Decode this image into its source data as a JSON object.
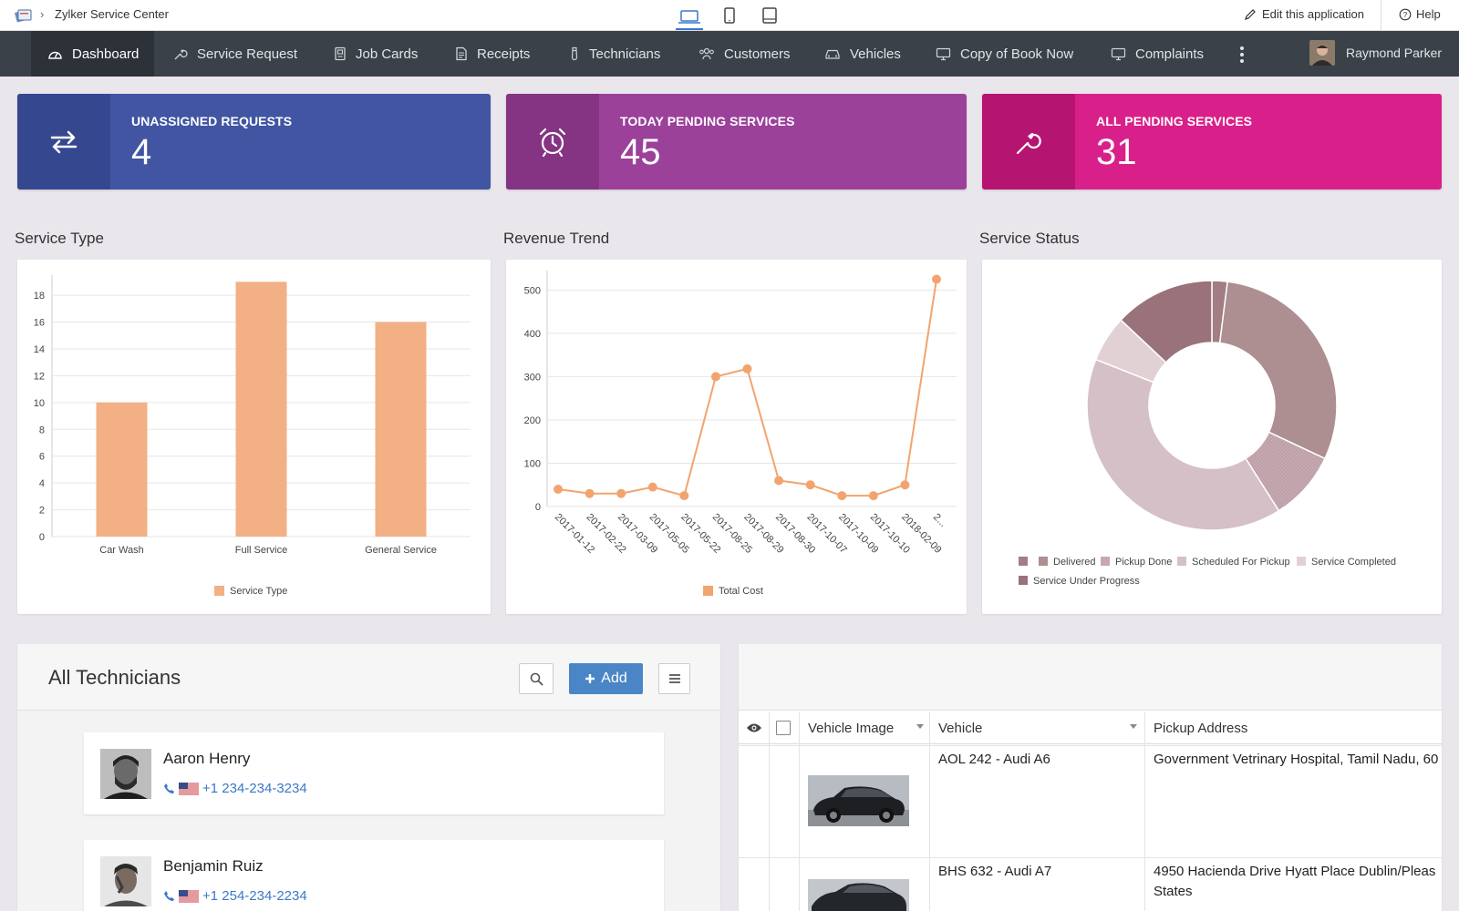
{
  "app": {
    "name": "Zylker Service Center",
    "edit_label": "Edit this application",
    "help_label": "Help"
  },
  "nav": {
    "items": [
      {
        "label": "Dashboard",
        "icon": "dashboard-icon"
      },
      {
        "label": "Service Request",
        "icon": "wrench-icon"
      },
      {
        "label": "Job Cards",
        "icon": "card-icon"
      },
      {
        "label": "Receipts",
        "icon": "receipt-icon"
      },
      {
        "label": "Technicians",
        "icon": "technician-icon"
      },
      {
        "label": "Customers",
        "icon": "customers-icon"
      },
      {
        "label": "Vehicles",
        "icon": "car-icon"
      },
      {
        "label": "Copy of Book Now",
        "icon": "monitor-icon"
      },
      {
        "label": "Complaints",
        "icon": "monitor-icon"
      }
    ],
    "user_name": "Raymond Parker"
  },
  "stats": [
    {
      "label": "UNASSIGNED REQUESTS",
      "value": "4",
      "icon": "swap-arrows-icon",
      "color": "#4155a3",
      "icon_bg": "#35478f"
    },
    {
      "label": "TODAY PENDING SERVICES",
      "value": "45",
      "icon": "alarm-clock-icon",
      "color": "#9b419a",
      "icon_bg": "#843482"
    },
    {
      "label": "ALL PENDING SERVICES",
      "value": "31",
      "icon": "wrench-icon",
      "color": "#d9208a",
      "icon_bg": "#b51571"
    }
  ],
  "sections": {
    "service_type": "Service Type",
    "revenue_trend": "Revenue Trend",
    "service_status": "Service Status"
  },
  "chart_data": [
    {
      "type": "bar",
      "title": "Service Type",
      "categories": [
        "Car Wash",
        "Full Service",
        "General Service"
      ],
      "series": [
        {
          "name": "Service Type",
          "values": [
            10,
            19,
            16
          ]
        }
      ],
      "ylim": [
        0,
        19.5
      ],
      "yticks": [
        0,
        2,
        4,
        6,
        8,
        10,
        12,
        14,
        16,
        18
      ],
      "color": "#f2b084",
      "grid": true,
      "legend": "bottom"
    },
    {
      "type": "line",
      "title": "Revenue Trend",
      "x": [
        "2017-01-12",
        "2017-02-22",
        "2017-03-09",
        "2017-05-05",
        "2017-05-22",
        "2017-08-25",
        "2017-08-29",
        "2017-08-30",
        "2017-10-07",
        "2017-10-09",
        "2017-10-10",
        "2018-02-09",
        "2..."
      ],
      "series": [
        {
          "name": "Total Cost",
          "values": [
            40,
            30,
            30,
            45,
            25,
            300,
            318,
            60,
            50,
            25,
            25,
            50,
            525
          ]
        }
      ],
      "ylim": [
        0,
        545
      ],
      "yticks": [
        0,
        100,
        200,
        300,
        400,
        500
      ],
      "color": "#f2a46e",
      "grid": true,
      "legend": "bottom"
    },
    {
      "type": "pie",
      "title": "Service Status",
      "donut": true,
      "slices": [
        {
          "label": "",
          "value": 2,
          "color": "#a27d84"
        },
        {
          "label": "Delivered",
          "value": 30,
          "color": "#ad8e91"
        },
        {
          "label": "Pickup Done",
          "value": 9,
          "color": "#c6a8b0",
          "pattern": true
        },
        {
          "label": "Scheduled For Pickup",
          "value": 40,
          "color": "#d5c0c7"
        },
        {
          "label": "Service Completed",
          "value": 6,
          "color": "#e2d1d4"
        },
        {
          "label": "Service Under Progress",
          "value": 13,
          "color": "#9a7279"
        }
      ],
      "legend": "bottom"
    }
  ],
  "technicians": {
    "title": "All Technicians",
    "add_label": "Add",
    "items": [
      {
        "name": "Aaron Henry",
        "phone": "+1 234-234-3234"
      },
      {
        "name": "Benjamin Ruiz",
        "phone": "+1 254-234-2234"
      }
    ]
  },
  "vehicles": {
    "columns": {
      "image": "Vehicle Image",
      "vehicle": "Vehicle",
      "address": "Pickup Address"
    },
    "rows": [
      {
        "vehicle": "AOL 242 - Audi A6",
        "address_line1": "Government Vetrinary Hospital, Tamil Nadu, 60",
        "address_line2": ""
      },
      {
        "vehicle": "BHS 632 - Audi A7",
        "address_line1": "4950 Hacienda Drive Hyatt Place Dublin/Pleas",
        "address_line2": "States"
      }
    ]
  }
}
